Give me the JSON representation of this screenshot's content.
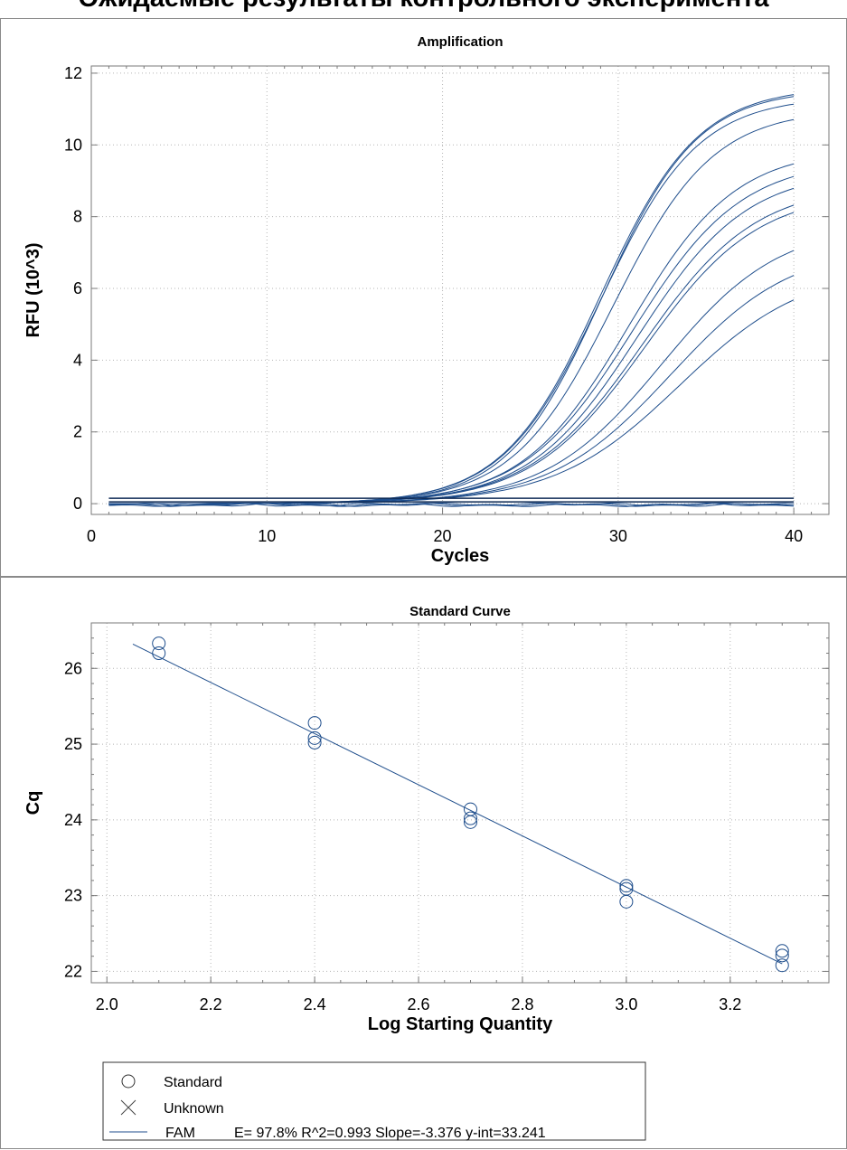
{
  "page_title": "Ожидаемые результаты контрольного эксперимента",
  "colors": {
    "curve": "#1f4e8c",
    "frame": "#7a7a7a",
    "grid": "#b5b5b5"
  },
  "chart_data": [
    {
      "type": "line",
      "title": "Amplification",
      "xlabel": "Cycles",
      "ylabel": "RFU (10^3)",
      "xlim": [
        0,
        42
      ],
      "ylim": [
        -0.3,
        12.2
      ],
      "xticks": [
        0,
        10,
        20,
        30,
        40
      ],
      "yticks": [
        0,
        2,
        4,
        6,
        8,
        10,
        12
      ],
      "grid": true,
      "threshold_lines": [
        0.05,
        0.15
      ],
      "series_params": [
        {
          "max": 11.62,
          "mid": 29.0,
          "k": 0.36
        },
        {
          "max": 11.55,
          "mid": 29.1,
          "k": 0.37
        },
        {
          "max": 11.35,
          "mid": 29.0,
          "k": 0.36
        },
        {
          "max": 11.0,
          "mid": 29.7,
          "k": 0.35
        },
        {
          "max": 9.9,
          "mid": 30.6,
          "k": 0.33
        },
        {
          "max": 9.6,
          "mid": 30.8,
          "k": 0.32
        },
        {
          "max": 9.3,
          "mid": 31.1,
          "k": 0.32
        },
        {
          "max": 8.9,
          "mid": 31.4,
          "k": 0.31
        },
        {
          "max": 8.7,
          "mid": 31.5,
          "k": 0.31
        },
        {
          "max": 7.8,
          "mid": 32.5,
          "k": 0.3
        },
        {
          "max": 7.2,
          "mid": 33.0,
          "k": 0.29
        },
        {
          "max": 6.6,
          "mid": 33.5,
          "k": 0.28
        }
      ]
    },
    {
      "type": "scatter",
      "title": "Standard Curve",
      "xlabel": "Log Starting Quantity",
      "ylabel": "Cq",
      "xlim": [
        1.97,
        3.39
      ],
      "ylim": [
        21.85,
        26.6
      ],
      "xticks": [
        "2.0",
        "2.2",
        "2.4",
        "2.6",
        "2.8",
        "3.0",
        "3.2"
      ],
      "yticks": [
        22,
        23,
        24,
        25,
        26
      ],
      "grid": true,
      "points": [
        {
          "x": 2.1,
          "y": 26.33
        },
        {
          "x": 2.1,
          "y": 26.2
        },
        {
          "x": 2.4,
          "y": 25.28
        },
        {
          "x": 2.4,
          "y": 25.08
        },
        {
          "x": 2.4,
          "y": 25.02
        },
        {
          "x": 2.7,
          "y": 24.14
        },
        {
          "x": 2.7,
          "y": 24.02
        },
        {
          "x": 2.7,
          "y": 23.97
        },
        {
          "x": 3.0,
          "y": 23.13
        },
        {
          "x": 3.0,
          "y": 23.09
        },
        {
          "x": 3.0,
          "y": 22.92
        },
        {
          "x": 3.3,
          "y": 22.27
        },
        {
          "x": 3.3,
          "y": 22.21
        },
        {
          "x": 3.3,
          "y": 22.08
        }
      ],
      "fit": {
        "slope": -3.376,
        "intercept": 33.241,
        "x_from": 2.05,
        "x_to": 3.3
      },
      "legend": {
        "placement": "bottom-left",
        "entries": [
          {
            "symbol": "circle",
            "label": "Standard"
          },
          {
            "symbol": "cross",
            "label": "Unknown"
          },
          {
            "symbol": "line",
            "label": "FAM",
            "stats": "E= 97.8% R^2=0.993 Slope=-3.376 y-int=33.241"
          }
        ]
      }
    }
  ]
}
